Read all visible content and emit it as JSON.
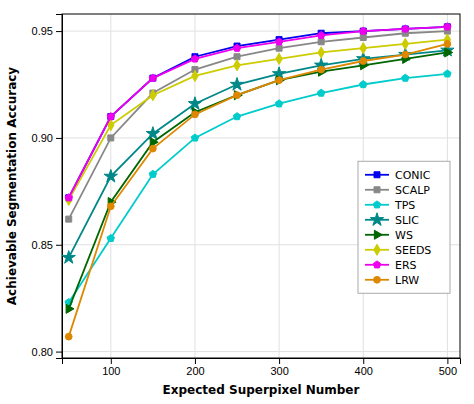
{
  "chart_data": {
    "type": "line",
    "xlabel": "Expected Superpixel Number",
    "ylabel": "Achievable Segmentation Accuracy",
    "x": [
      50,
      100,
      150,
      200,
      250,
      300,
      350,
      400,
      450,
      500
    ],
    "series": [
      {
        "name": "CONIC",
        "color": "#0000EE",
        "marker": "square",
        "values": [
          0.872,
          0.91,
          0.928,
          0.938,
          0.943,
          0.946,
          0.949,
          0.95,
          0.951,
          0.952
        ]
      },
      {
        "name": "SCALP",
        "color": "#888888",
        "marker": "square",
        "values": [
          0.862,
          0.9,
          0.921,
          0.932,
          0.938,
          0.942,
          0.945,
          0.947,
          0.949,
          0.95
        ]
      },
      {
        "name": "TPS",
        "color": "#00CCCC",
        "marker": "pentagon",
        "values": [
          0.823,
          0.853,
          0.883,
          0.9,
          0.91,
          0.916,
          0.921,
          0.925,
          0.928,
          0.93
        ]
      },
      {
        "name": "SLIC",
        "color": "#008888",
        "marker": "star",
        "values": [
          0.844,
          0.882,
          0.902,
          0.916,
          0.925,
          0.93,
          0.934,
          0.937,
          0.939,
          0.941
        ]
      },
      {
        "name": "WS",
        "color": "#006600",
        "marker": "triangle-right",
        "values": [
          0.82,
          0.87,
          0.898,
          0.912,
          0.92,
          0.927,
          0.931,
          0.934,
          0.937,
          0.94
        ]
      },
      {
        "name": "SEEDS",
        "color": "#CCCC00",
        "marker": "diamond",
        "values": [
          0.871,
          0.906,
          0.92,
          0.929,
          0.934,
          0.937,
          0.94,
          0.942,
          0.944,
          0.946
        ]
      },
      {
        "name": "ERS",
        "color": "#EE00EE",
        "marker": "pentagon",
        "values": [
          0.872,
          0.91,
          0.928,
          0.937,
          0.942,
          0.945,
          0.948,
          0.95,
          0.951,
          0.952
        ]
      },
      {
        "name": "LRW",
        "color": "#DD8800",
        "marker": "circle",
        "values": [
          0.807,
          0.868,
          0.895,
          0.911,
          0.92,
          0.927,
          0.932,
          0.936,
          0.939,
          0.944
        ]
      }
    ],
    "xlim": [
      42,
      515
    ],
    "ylim": [
      0.797,
      0.958
    ],
    "xticks": [
      100,
      200,
      300,
      400,
      500
    ],
    "yticks": [
      {
        "value": 0.8,
        "label": "0.80"
      },
      0.85,
      {
        "value": 0.9,
        "label": "0.90"
      },
      0.95
    ],
    "grid": true,
    "legend": "right"
  }
}
